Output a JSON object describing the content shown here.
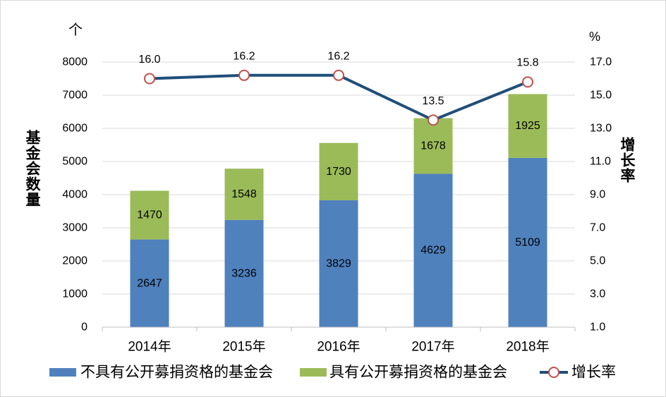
{
  "chart_data": {
    "type": "bar",
    "stacked": true,
    "categories": [
      "2014年",
      "2015年",
      "2016年",
      "2017年",
      "2018年"
    ],
    "series": [
      {
        "name": "不具有公开募捐资格的基金会",
        "type": "bar",
        "axis": "left",
        "values": [
          2647,
          3236,
          3829,
          4629,
          5109
        ],
        "color": "#4F81BD"
      },
      {
        "name": "具有公开募捐资格的基金会",
        "type": "bar",
        "axis": "left",
        "values": [
          1470,
          1548,
          1730,
          1678,
          1925
        ],
        "color": "#9BBB59"
      },
      {
        "name": "增长率",
        "type": "line",
        "axis": "right",
        "values": [
          16.0,
          16.2,
          16.2,
          13.5,
          15.8
        ],
        "color": "#1F4E79",
        "marker_edge_color": "#C0504D",
        "marker_fill_color": "#FFFFFF"
      }
    ],
    "ylabel": "基金会数量",
    "yunit": "个",
    "ylim": [
      0,
      8000
    ],
    "yticks": [
      0,
      1000,
      2000,
      3000,
      4000,
      5000,
      6000,
      7000,
      8000
    ],
    "y2label": "增长率",
    "y2unit": "%",
    "y2lim": [
      1,
      17
    ],
    "y2ticks": [
      1,
      3,
      5,
      7,
      9,
      11,
      13,
      15,
      17
    ],
    "grid": true,
    "legend": "bottom"
  }
}
